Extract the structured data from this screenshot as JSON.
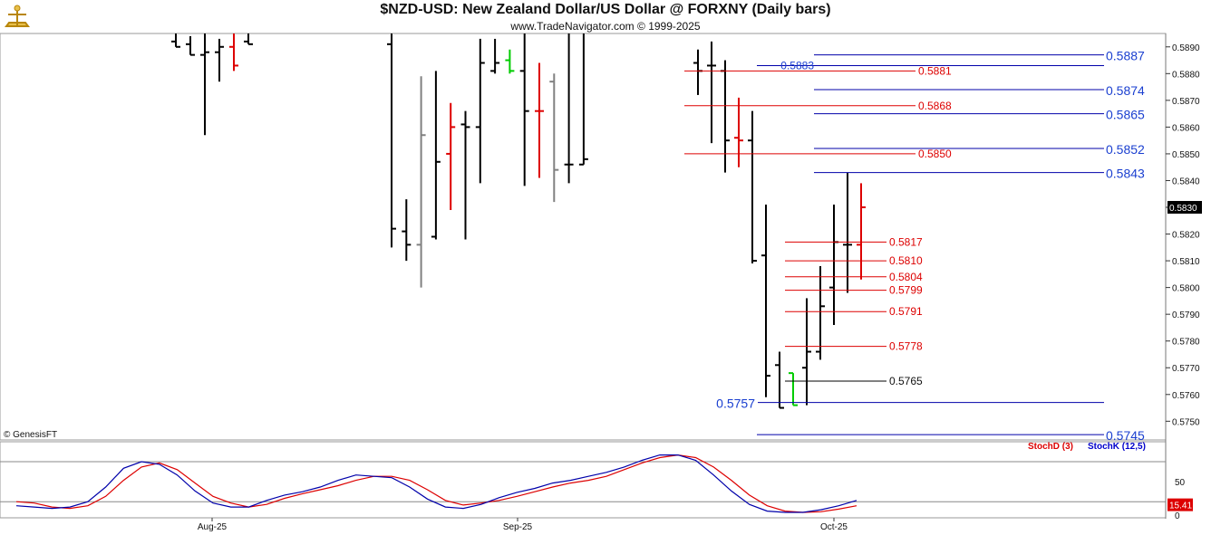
{
  "header": {
    "title": "$NZD-USD:  New Zealand Dollar/US Dollar @ FORXNY  (Daily bars)",
    "subtitle": "www.TradeNavigator.com © 1999-2025",
    "credit": "© GenesisFT"
  },
  "colors": {
    "bar": "#000000",
    "down_bar": "#dd0000",
    "gray_bar": "#808080",
    "green_bar": "#00cc00",
    "level_blue": "#0000aa",
    "level_red": "#dd0000",
    "stoch_d": "#dd0000",
    "stoch_k": "#0000cc"
  },
  "chart_data": [
    {
      "type": "ohlc",
      "title": "$NZD-USD:  New Zealand Dollar/US Dollar @ FORXNY  (Daily bars)",
      "x_labels": [
        "Aug-25",
        "Sep-25",
        "Oct-25"
      ],
      "ylim": [
        0.5743,
        0.5895
      ],
      "y_ticks": [
        "0.5890",
        "0.5880",
        "0.5870",
        "0.5860",
        "0.5850",
        "0.5840",
        "0.5830",
        "0.5820",
        "0.5810",
        "0.5800",
        "0.5790",
        "0.5780",
        "0.5770",
        "0.5760",
        "0.5750"
      ],
      "last_price": "0.5830",
      "bars": [
        {
          "o": 0.5892,
          "h": 0.5895,
          "l": 0.589,
          "c": 0.589,
          "col": "black"
        },
        {
          "o": 0.5891,
          "h": 0.5894,
          "l": 0.5887,
          "c": 0.5887,
          "col": "black"
        },
        {
          "o": 0.5887,
          "h": 0.5895,
          "l": 0.5857,
          "c": 0.5888,
          "col": "black"
        },
        {
          "o": 0.5888,
          "h": 0.5893,
          "l": 0.5877,
          "c": 0.589,
          "col": "black"
        },
        {
          "o": 0.589,
          "h": 0.5895,
          "l": 0.5881,
          "c": 0.5883,
          "col": "red"
        },
        {
          "o": 0.5892,
          "h": 0.5895,
          "l": 0.5891,
          "c": 0.5891,
          "col": "black"
        },
        {
          "o": 0.5891,
          "h": 0.5895,
          "l": 0.5815,
          "c": 0.5822,
          "col": "black"
        },
        {
          "o": 0.5821,
          "h": 0.5833,
          "l": 0.581,
          "c": 0.5816,
          "col": "black"
        },
        {
          "o": 0.5816,
          "h": 0.5879,
          "l": 0.58,
          "c": 0.5857,
          "col": "gray"
        },
        {
          "o": 0.5819,
          "h": 0.5881,
          "l": 0.5818,
          "c": 0.5847,
          "col": "black"
        },
        {
          "o": 0.585,
          "h": 0.5869,
          "l": 0.5829,
          "c": 0.586,
          "col": "red"
        },
        {
          "o": 0.5861,
          "h": 0.5866,
          "l": 0.5818,
          "c": 0.586,
          "col": "black"
        },
        {
          "o": 0.586,
          "h": 0.5893,
          "l": 0.5839,
          "c": 0.5884,
          "col": "black"
        },
        {
          "o": 0.5881,
          "h": 0.5893,
          "l": 0.588,
          "c": 0.5884,
          "col": "black"
        },
        {
          "o": 0.5885,
          "h": 0.5889,
          "l": 0.588,
          "c": 0.5881,
          "col": "green"
        },
        {
          "o": 0.5881,
          "h": 0.5895,
          "l": 0.5838,
          "c": 0.5866,
          "col": "black"
        },
        {
          "o": 0.5866,
          "h": 0.5884,
          "l": 0.5841,
          "c": 0.5866,
          "col": "red"
        },
        {
          "o": 0.5877,
          "h": 0.588,
          "l": 0.5832,
          "c": 0.5844,
          "col": "gray"
        },
        {
          "o": 0.5846,
          "h": 0.5895,
          "l": 0.5839,
          "c": 0.5846,
          "col": "black"
        },
        {
          "o": 0.5846,
          "h": 0.5895,
          "l": 0.5846,
          "c": 0.5848,
          "col": "black"
        },
        {
          "o": 0.5884,
          "h": 0.5889,
          "l": 0.5872,
          "c": 0.5881,
          "col": "black"
        },
        {
          "o": 0.5883,
          "h": 0.5892,
          "l": 0.5854,
          "c": 0.5883,
          "col": "black"
        },
        {
          "o": 0.5881,
          "h": 0.5885,
          "l": 0.5843,
          "c": 0.5855,
          "col": "black"
        },
        {
          "o": 0.5856,
          "h": 0.5871,
          "l": 0.5845,
          "c": 0.5855,
          "col": "red"
        },
        {
          "o": 0.5855,
          "h": 0.5866,
          "l": 0.5809,
          "c": 0.581,
          "col": "black"
        },
        {
          "o": 0.5812,
          "h": 0.5831,
          "l": 0.5759,
          "c": 0.5767,
          "col": "black"
        },
        {
          "o": 0.5771,
          "h": 0.5776,
          "l": 0.5755,
          "c": 0.5755,
          "col": "black"
        },
        {
          "o": 0.5768,
          "h": 0.5768,
          "l": 0.5756,
          "c": 0.5756,
          "col": "green"
        },
        {
          "o": 0.577,
          "h": 0.5796,
          "l": 0.5756,
          "c": 0.5776,
          "col": "black"
        },
        {
          "o": 0.5776,
          "h": 0.5808,
          "l": 0.5773,
          "c": 0.5793,
          "col": "black"
        },
        {
          "o": 0.58,
          "h": 0.5831,
          "l": 0.5786,
          "c": 0.5817,
          "col": "black"
        },
        {
          "o": 0.5816,
          "h": 0.5843,
          "l": 0.5798,
          "c": 0.5816,
          "col": "black"
        },
        {
          "o": 0.5816,
          "h": 0.5839,
          "l": 0.5803,
          "c": 0.583,
          "col": "red"
        }
      ],
      "levels": [
        {
          "label": "0.5887",
          "value": 0.5887,
          "color": "blue"
        },
        {
          "label": "0.5883",
          "value": 0.5883,
          "color": "blue"
        },
        {
          "label": "0.5881",
          "value": 0.5881,
          "color": "red"
        },
        {
          "label": "0.5874",
          "value": 0.5874,
          "color": "blue"
        },
        {
          "label": "0.5868",
          "value": 0.5868,
          "color": "red"
        },
        {
          "label": "0.5865",
          "value": 0.5865,
          "color": "blue"
        },
        {
          "label": "0.5852",
          "value": 0.5852,
          "color": "blue"
        },
        {
          "label": "0.5850",
          "value": 0.585,
          "color": "red"
        },
        {
          "label": "0.5843",
          "value": 0.5843,
          "color": "blue"
        },
        {
          "label": "0.5817",
          "value": 0.5817,
          "color": "red"
        },
        {
          "label": "0.5810",
          "value": 0.581,
          "color": "red"
        },
        {
          "label": "0.5804",
          "value": 0.5804,
          "color": "red"
        },
        {
          "label": "0.5799",
          "value": 0.5799,
          "color": "red"
        },
        {
          "label": "0.5791",
          "value": 0.5791,
          "color": "red"
        },
        {
          "label": "0.5778",
          "value": 0.5778,
          "color": "red"
        },
        {
          "label": "0.5765",
          "value": 0.5765,
          "color": "black"
        },
        {
          "label": "0.5757",
          "value": 0.5757,
          "color": "blue"
        },
        {
          "label": "0.5745",
          "value": 0.5745,
          "color": "blue"
        }
      ]
    },
    {
      "type": "line",
      "title": "",
      "legend": [
        "StochD (3)",
        "StochK (12,5)"
      ],
      "ylim": [
        0,
        100
      ],
      "y_ticks": [
        "50",
        "0"
      ],
      "reference_lines": [
        80,
        20
      ],
      "last_value": "15.41",
      "series": [
        {
          "name": "StochD (3)",
          "color": "red",
          "values": [
            20,
            18,
            12,
            10,
            14,
            28,
            52,
            72,
            78,
            68,
            48,
            28,
            18,
            12,
            16,
            25,
            32,
            38,
            44,
            52,
            58,
            58,
            52,
            38,
            22,
            15,
            18,
            22,
            28,
            35,
            42,
            48,
            52,
            58,
            68,
            78,
            86,
            90,
            86,
            72,
            52,
            30,
            14,
            6,
            4,
            5,
            9,
            14
          ]
        },
        {
          "name": "StochK (12,5)",
          "color": "blue",
          "values": [
            14,
            12,
            10,
            12,
            20,
            42,
            70,
            80,
            76,
            60,
            36,
            18,
            12,
            12,
            22,
            30,
            35,
            42,
            52,
            60,
            58,
            56,
            42,
            24,
            12,
            10,
            16,
            26,
            34,
            40,
            48,
            52,
            58,
            64,
            72,
            82,
            90,
            90,
            82,
            60,
            36,
            16,
            6,
            4,
            4,
            8,
            14,
            22
          ]
        }
      ]
    }
  ]
}
